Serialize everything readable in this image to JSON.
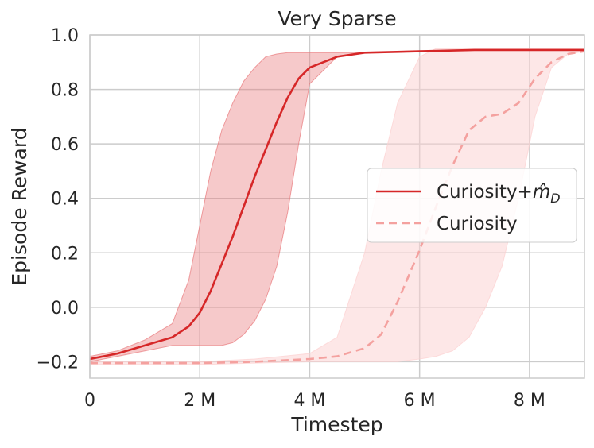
{
  "chart_data": {
    "type": "line",
    "title": "Very Sparse",
    "xlabel": "Timestep",
    "ylabel": "Episode Reward",
    "xlim": [
      0,
      9000000
    ],
    "ylim": [
      -0.26,
      1.0
    ],
    "x_ticks": [
      0,
      2000000,
      4000000,
      6000000,
      8000000
    ],
    "x_tick_labels": [
      "0",
      "2 M",
      "4 M",
      "6 M",
      "8 M"
    ],
    "y_ticks": [
      -0.2,
      0.0,
      0.2,
      0.4,
      0.6,
      0.8,
      1.0
    ],
    "y_tick_labels": [
      "−0.2",
      "0.0",
      "0.2",
      "0.4",
      "0.6",
      "0.8",
      "1.0"
    ],
    "grid": true,
    "legend_position": "center-right",
    "series": [
      {
        "name": "Curiosity+m̂_D",
        "name_base": "Curiosity+",
        "name_math": "m̂",
        "name_sub": "D",
        "color": "#d62728",
        "band_color": "#e8787a",
        "line_style": "solid",
        "x": [
          0,
          500000,
          1000000,
          1500000,
          1800000,
          2000000,
          2200000,
          2400000,
          2600000,
          2800000,
          3000000,
          3200000,
          3400000,
          3600000,
          3800000,
          4000000,
          4500000,
          5000000,
          6000000,
          7000000,
          8000000,
          9000000
        ],
        "mean": [
          -0.19,
          -0.17,
          -0.14,
          -0.11,
          -0.07,
          -0.02,
          0.06,
          0.16,
          0.26,
          0.37,
          0.48,
          0.58,
          0.68,
          0.77,
          0.84,
          0.88,
          0.92,
          0.935,
          0.94,
          0.945,
          0.945,
          0.945
        ],
        "lower": [
          -0.2,
          -0.18,
          -0.16,
          -0.14,
          -0.14,
          -0.14,
          -0.14,
          -0.14,
          -0.13,
          -0.1,
          -0.05,
          0.03,
          0.15,
          0.35,
          0.6,
          0.82,
          0.92,
          0.935,
          0.94,
          0.945,
          0.945,
          0.945
        ],
        "upper": [
          -0.18,
          -0.16,
          -0.12,
          -0.06,
          0.1,
          0.3,
          0.5,
          0.65,
          0.75,
          0.83,
          0.88,
          0.92,
          0.93,
          0.935,
          0.935,
          0.935,
          0.935,
          0.937,
          0.94,
          0.945,
          0.945,
          0.945
        ]
      },
      {
        "name": "Curiosity",
        "color": "#f4a19f",
        "band_color": "#fcd0d0",
        "line_style": "dashed",
        "x": [
          0,
          1000000,
          2000000,
          3000000,
          4000000,
          4500000,
          5000000,
          5300000,
          5600000,
          6000000,
          6300000,
          6600000,
          6900000,
          7200000,
          7500000,
          7800000,
          8100000,
          8400000,
          8700000,
          9000000
        ],
        "mean": [
          -0.205,
          -0.205,
          -0.205,
          -0.2,
          -0.19,
          -0.18,
          -0.15,
          -0.1,
          0.02,
          0.21,
          0.37,
          0.52,
          0.65,
          0.7,
          0.71,
          0.75,
          0.84,
          0.9,
          0.93,
          0.94
        ],
        "lower": [
          -0.21,
          -0.21,
          -0.21,
          -0.205,
          -0.2,
          -0.2,
          -0.2,
          -0.2,
          -0.2,
          -0.19,
          -0.18,
          -0.16,
          -0.11,
          0.0,
          0.15,
          0.4,
          0.7,
          0.88,
          0.93,
          0.94
        ],
        "upper": [
          -0.2,
          -0.2,
          -0.2,
          -0.19,
          -0.17,
          -0.11,
          0.2,
          0.5,
          0.75,
          0.92,
          0.95,
          0.95,
          0.95,
          0.95,
          0.95,
          0.95,
          0.95,
          0.95,
          0.95,
          0.95
        ]
      }
    ]
  }
}
